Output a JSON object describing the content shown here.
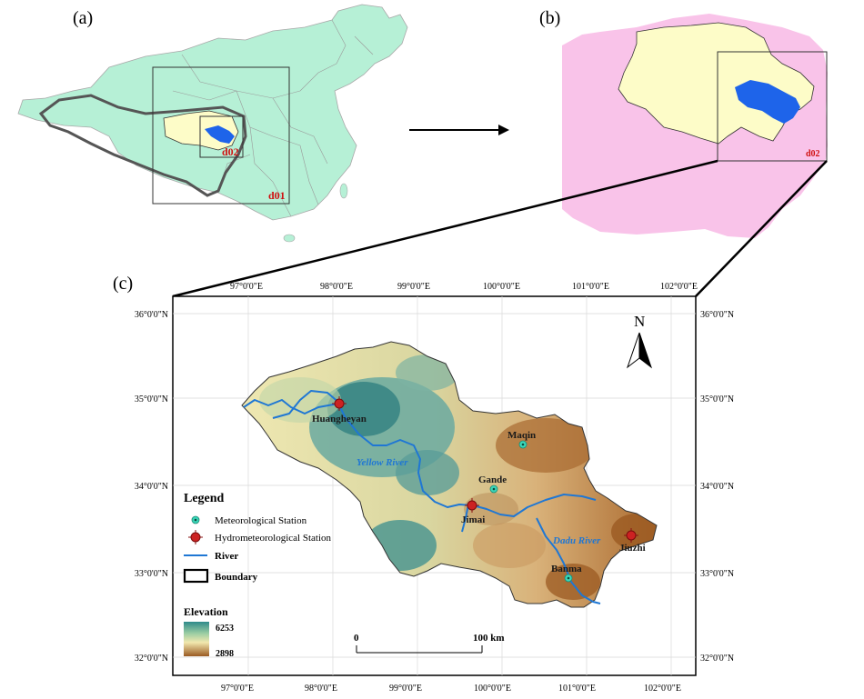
{
  "panels": {
    "a": {
      "label": "(a)",
      "d01_label": "d01",
      "d02_label": "d02"
    },
    "b": {
      "label": "(b)",
      "d02_label": "d02"
    },
    "c": {
      "label": "(c)"
    }
  },
  "map_c": {
    "lon_ticks": [
      "97°0'0\"E",
      "98°0'0\"E",
      "99°0'0\"E",
      "100°0'0\"E",
      "101°0'0\"E",
      "102°0'0\"E"
    ],
    "lat_ticks": [
      "36°0'0\"N",
      "35°0'0\"N",
      "34°0'0\"N",
      "33°0'0\"N",
      "32°0'0\"N"
    ],
    "north_arrow": "N",
    "stations": {
      "meteorological": [
        {
          "name": "Maqin"
        },
        {
          "name": "Gande"
        },
        {
          "name": "Banma"
        }
      ],
      "hydrometeorological": [
        {
          "name": "Huangheyan"
        },
        {
          "name": "Jimai"
        },
        {
          "name": "Jiuzhi"
        }
      ]
    },
    "rivers": {
      "yellow": "Yellow River",
      "dadu": "Dadu River"
    },
    "legend": {
      "title": "Legend",
      "items": {
        "met": "Meteorological Station",
        "hydro": "Hydrometeorological Station",
        "river": "River",
        "boundary": "Boundary"
      },
      "elevation_title": "Elevation",
      "elevation_max": "6253",
      "elevation_min": "2898"
    },
    "scale": {
      "start": "0",
      "end": "100 km"
    }
  },
  "colors": {
    "china_fill": "#b6f0d6",
    "plateau_fill": "#fdfcc8",
    "basin_fill": "#1e64ea",
    "pink_fill": "#f9c3e9",
    "river": "#1f77d4",
    "station_met": "#3ad6b8",
    "station_hydro": "#cc2222",
    "label_red": "#d01010"
  }
}
